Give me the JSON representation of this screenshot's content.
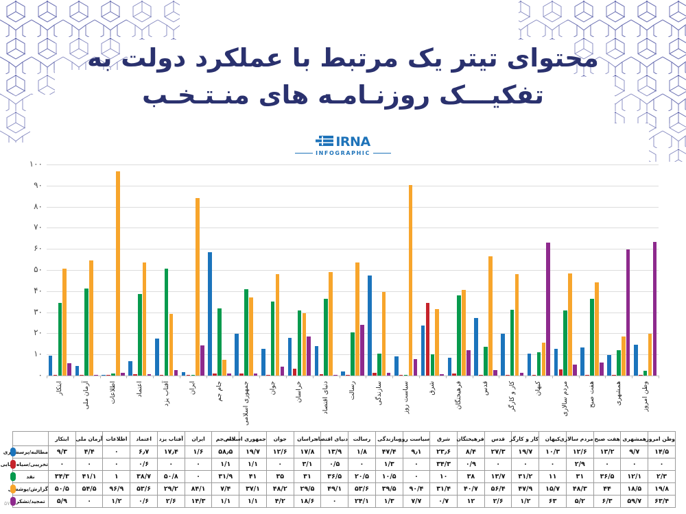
{
  "page": {
    "page_number": "۵۷"
  },
  "header": {
    "title_line1": "محتوای تیتر یک مرتبط با عملکرد دولت به",
    "title_line2": "تفکیـــک روزنـامـه های منـتـخـب",
    "logo_name": "IRNA",
    "logo_subtitle": "INFOGRAPHIC"
  },
  "colors": {
    "title": "#2a316e",
    "logo": "#1e73b9",
    "grid": "#dcdcdc",
    "axis": "#c2c2c2",
    "table_border": "#9b9b9b",
    "blue": "#1b74bc",
    "red": "#c5232b",
    "green": "#079a4d",
    "orange": "#f7a52c",
    "purple": "#8e2a8d"
  },
  "chart_data": {
    "type": "bar",
    "title": "محتوای تیتر یک مرتبط با عملکرد دولت به تفکیک روزنامه های منتخب",
    "ylim": [
      0,
      100
    ],
    "grid": true,
    "legend_position": "table-left",
    "y_ticks": [
      {
        "value": 100,
        "label": "۱۰۰"
      },
      {
        "value": 90,
        "label": "۹۰"
      },
      {
        "value": 80,
        "label": "۸۰"
      },
      {
        "value": 70,
        "label": "۷۰"
      },
      {
        "value": 60,
        "label": "۶۰"
      },
      {
        "value": 50,
        "label": "۵۰"
      },
      {
        "value": 40,
        "label": "۴۰"
      },
      {
        "value": 30,
        "label": "۳۰"
      },
      {
        "value": 20,
        "label": "۲۰"
      },
      {
        "value": 10,
        "label": "۱۰"
      },
      {
        "value": 0,
        "label": "۰"
      }
    ],
    "categories": [
      "ابتکار",
      "آرمان ملی",
      "اطلاعات",
      "اعتماد",
      "آفتاب یزد",
      "ایران",
      "جام جم",
      "جمهوری اسلامی",
      "جوان",
      "خراسان",
      "دنیای اقتصاد",
      "رسالت",
      "سازندگی",
      "سیاست روز",
      "شرق",
      "فرهیختگان",
      "قدس",
      "کار و کارگر",
      "کیهان",
      "مردم سالاری",
      "هفت صبح",
      "همشهری",
      "وطن امروز"
    ],
    "series": [
      {
        "name": "مطالبه/پرسشگری",
        "color": "#1b74bc",
        "values": [
          9.3,
          4.4,
          0,
          6.7,
          17.4,
          1.6,
          58.5,
          19.7,
          12.6,
          17.8,
          13.9,
          1.8,
          47.4,
          9.1,
          23.6,
          8.4,
          27.3,
          19.7,
          10.3,
          12.6,
          13.2,
          9.7,
          14.5
        ],
        "display": [
          "۹/۳",
          "۴/۴",
          "۰",
          "۶٫۷",
          "۱۷٫۴",
          "۱/۶",
          "۵۸٫۵",
          "۱۹/۷",
          "۱۲/۶",
          "۱۷/۸",
          "۱۳/۹",
          "۱/۸",
          "۴۷/۴",
          "۹٫۱",
          "۲۳٫۶",
          "۸/۴",
          "۲۷/۳",
          "۱۹/۷",
          "۱۰/۳",
          "۱۲/۶",
          "۱۳/۲",
          "۹/۷",
          "۱۴/۵"
        ]
      },
      {
        "name": "تخریبی/سیاه نمایی",
        "color": "#c5232b",
        "values": [
          0,
          0,
          0,
          0.6,
          0,
          0,
          1.1,
          1.1,
          0,
          3.1,
          0.5,
          0,
          1.3,
          0,
          34.3,
          0.9,
          0,
          0,
          0,
          2.9,
          0,
          0,
          0
        ],
        "display": [
          "۰",
          "۰",
          "۰",
          "۰/۶",
          "۰",
          "۰",
          "۱/۱",
          "۱/۱",
          "۰",
          "۳/۱",
          "۰/۵",
          "۰",
          "۱/۳",
          "۰",
          "۳۴/۳",
          "۰/۹",
          "۰",
          "۰",
          "۰",
          "۲/۹",
          "۰",
          "۰",
          "۰"
        ]
      },
      {
        "name": "نقد",
        "color": "#079a4d",
        "values": [
          34.3,
          41.1,
          1,
          38.7,
          50.8,
          0,
          31.9,
          41,
          35,
          31,
          36.5,
          20.5,
          10.5,
          0,
          10,
          38,
          13.7,
          31.2,
          11,
          31,
          36.5,
          12.1,
          2.3
        ],
        "display": [
          "۳۴/۳",
          "۴۱/۱",
          "۱",
          "۳۸/۷",
          "۵۰/۸",
          "۰",
          "۳۱/۹",
          "۴۱",
          "۳۵",
          "۳۱",
          "۳۶/۵",
          "۲۰/۵",
          "۱۰/۵",
          "۰",
          "۱۰",
          "۳۸",
          "۱۳/۷",
          "۳۱/۲",
          "۱۱",
          "۳۱",
          "۳۶/۵",
          "۱۲/۱",
          "۲/۳"
        ]
      },
      {
        "name": "گزارش/پوششی",
        "color": "#f7a52c",
        "values": [
          50.5,
          54.5,
          96.9,
          53.6,
          29.2,
          84.1,
          7.4,
          37.1,
          48.2,
          29.5,
          49.1,
          53.6,
          39.5,
          90.4,
          31.4,
          40.7,
          56.4,
          47.9,
          15.7,
          48.3,
          44,
          18.5,
          19.8
        ],
        "display": [
          "۵۰/۵",
          "۵۴/۵",
          "۹۶/۹",
          "۵۳/۶",
          "۲۹/۲",
          "۸۴/۱",
          "۷/۴",
          "۳۷/۱",
          "۴۸/۲",
          "۲۹/۵",
          "۴۹/۱",
          "۵۳/۶",
          "۳۹/۵",
          "۹۰/۴",
          "۳۱/۴",
          "۴۰/۷",
          "۵۶/۴",
          "۴۷/۹",
          "۱۵/۷",
          "۴۸/۳",
          "۴۴",
          "۱۸/۵",
          "۱۹/۸"
        ]
      },
      {
        "name": "تمجید/تشکر",
        "color": "#8e2a8d",
        "values": [
          5.9,
          0,
          1.2,
          0.6,
          2.6,
          14.3,
          1.1,
          1.1,
          4.2,
          18.6,
          0,
          24.1,
          1.3,
          7.7,
          0.7,
          12,
          2.6,
          1.2,
          63,
          5.2,
          6.3,
          59.7,
          63.4
        ],
        "display": [
          "۵/۹",
          "۰",
          "۱/۲",
          "۰/۶",
          "۲/۶",
          "۱۴/۳",
          "۱/۱",
          "۱/۱",
          "۴/۲",
          "۱۸/۶",
          "۰",
          "۲۴/۱",
          "۱/۳",
          "۷/۷",
          "۰/۷",
          "۱۲",
          "۲/۶",
          "۱/۲",
          "۶۳",
          "۵/۲",
          "۶/۳",
          "۵۹/۷",
          "۶۳/۴"
        ]
      }
    ]
  }
}
